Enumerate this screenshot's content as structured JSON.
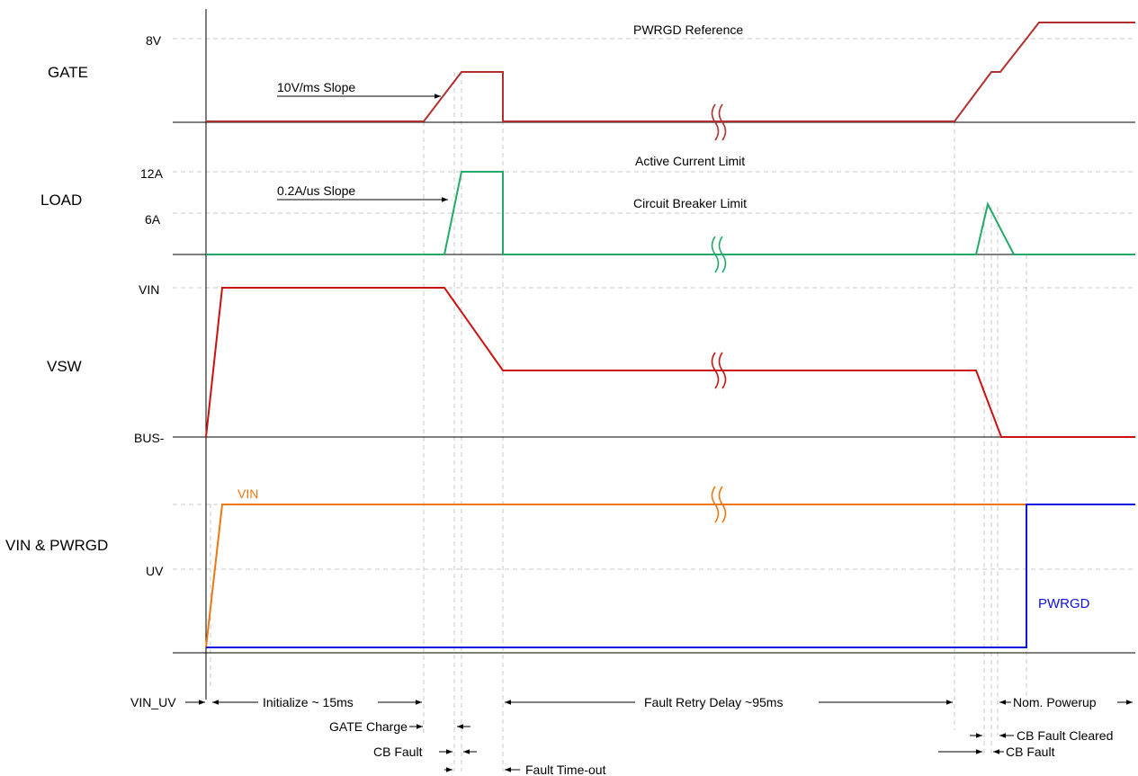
{
  "row_labels": {
    "gate": "GATE",
    "load": "LOAD",
    "vsw": "VSW",
    "vin_pwrgd": "VIN & PWRGD"
  },
  "level_labels": {
    "gate_8v": "8V",
    "load_12a": "12A",
    "load_6a": "6A",
    "vsw_vin": "VIN",
    "vsw_bus": "BUS-",
    "uv": "UV"
  },
  "annotations": {
    "pwrgd_reference": "PWRGD Reference",
    "gate_slope": "10V/ms Slope",
    "active_current_limit": "Active Current Limit",
    "load_slope": "0.2A/us Slope",
    "circuit_breaker_limit": "Circuit Breaker Limit",
    "vin_trace_label": "VIN",
    "pwrgd_trace_label": "PWRGD"
  },
  "timing_labels": {
    "vin_uv": "VIN_UV",
    "initialize": "Initialize ~ 15ms",
    "gate_charge": "GATE Charge",
    "cb_fault_1": "CB Fault",
    "fault_timeout": "Fault Time-out",
    "fault_retry": "Fault Retry Delay ~95ms",
    "nom_powerup": "Nom. Powerup",
    "cb_fault_cleared": "CB Fault Cleared",
    "cb_fault_2": "CB Fault"
  },
  "colors": {
    "gate": "#b03030",
    "load": "#22aa66",
    "vsw": "#cc1111",
    "vin": "#ee7711",
    "pwrgd": "#1111dd",
    "grid": "#c8c8c8",
    "axis": "#000000"
  }
}
